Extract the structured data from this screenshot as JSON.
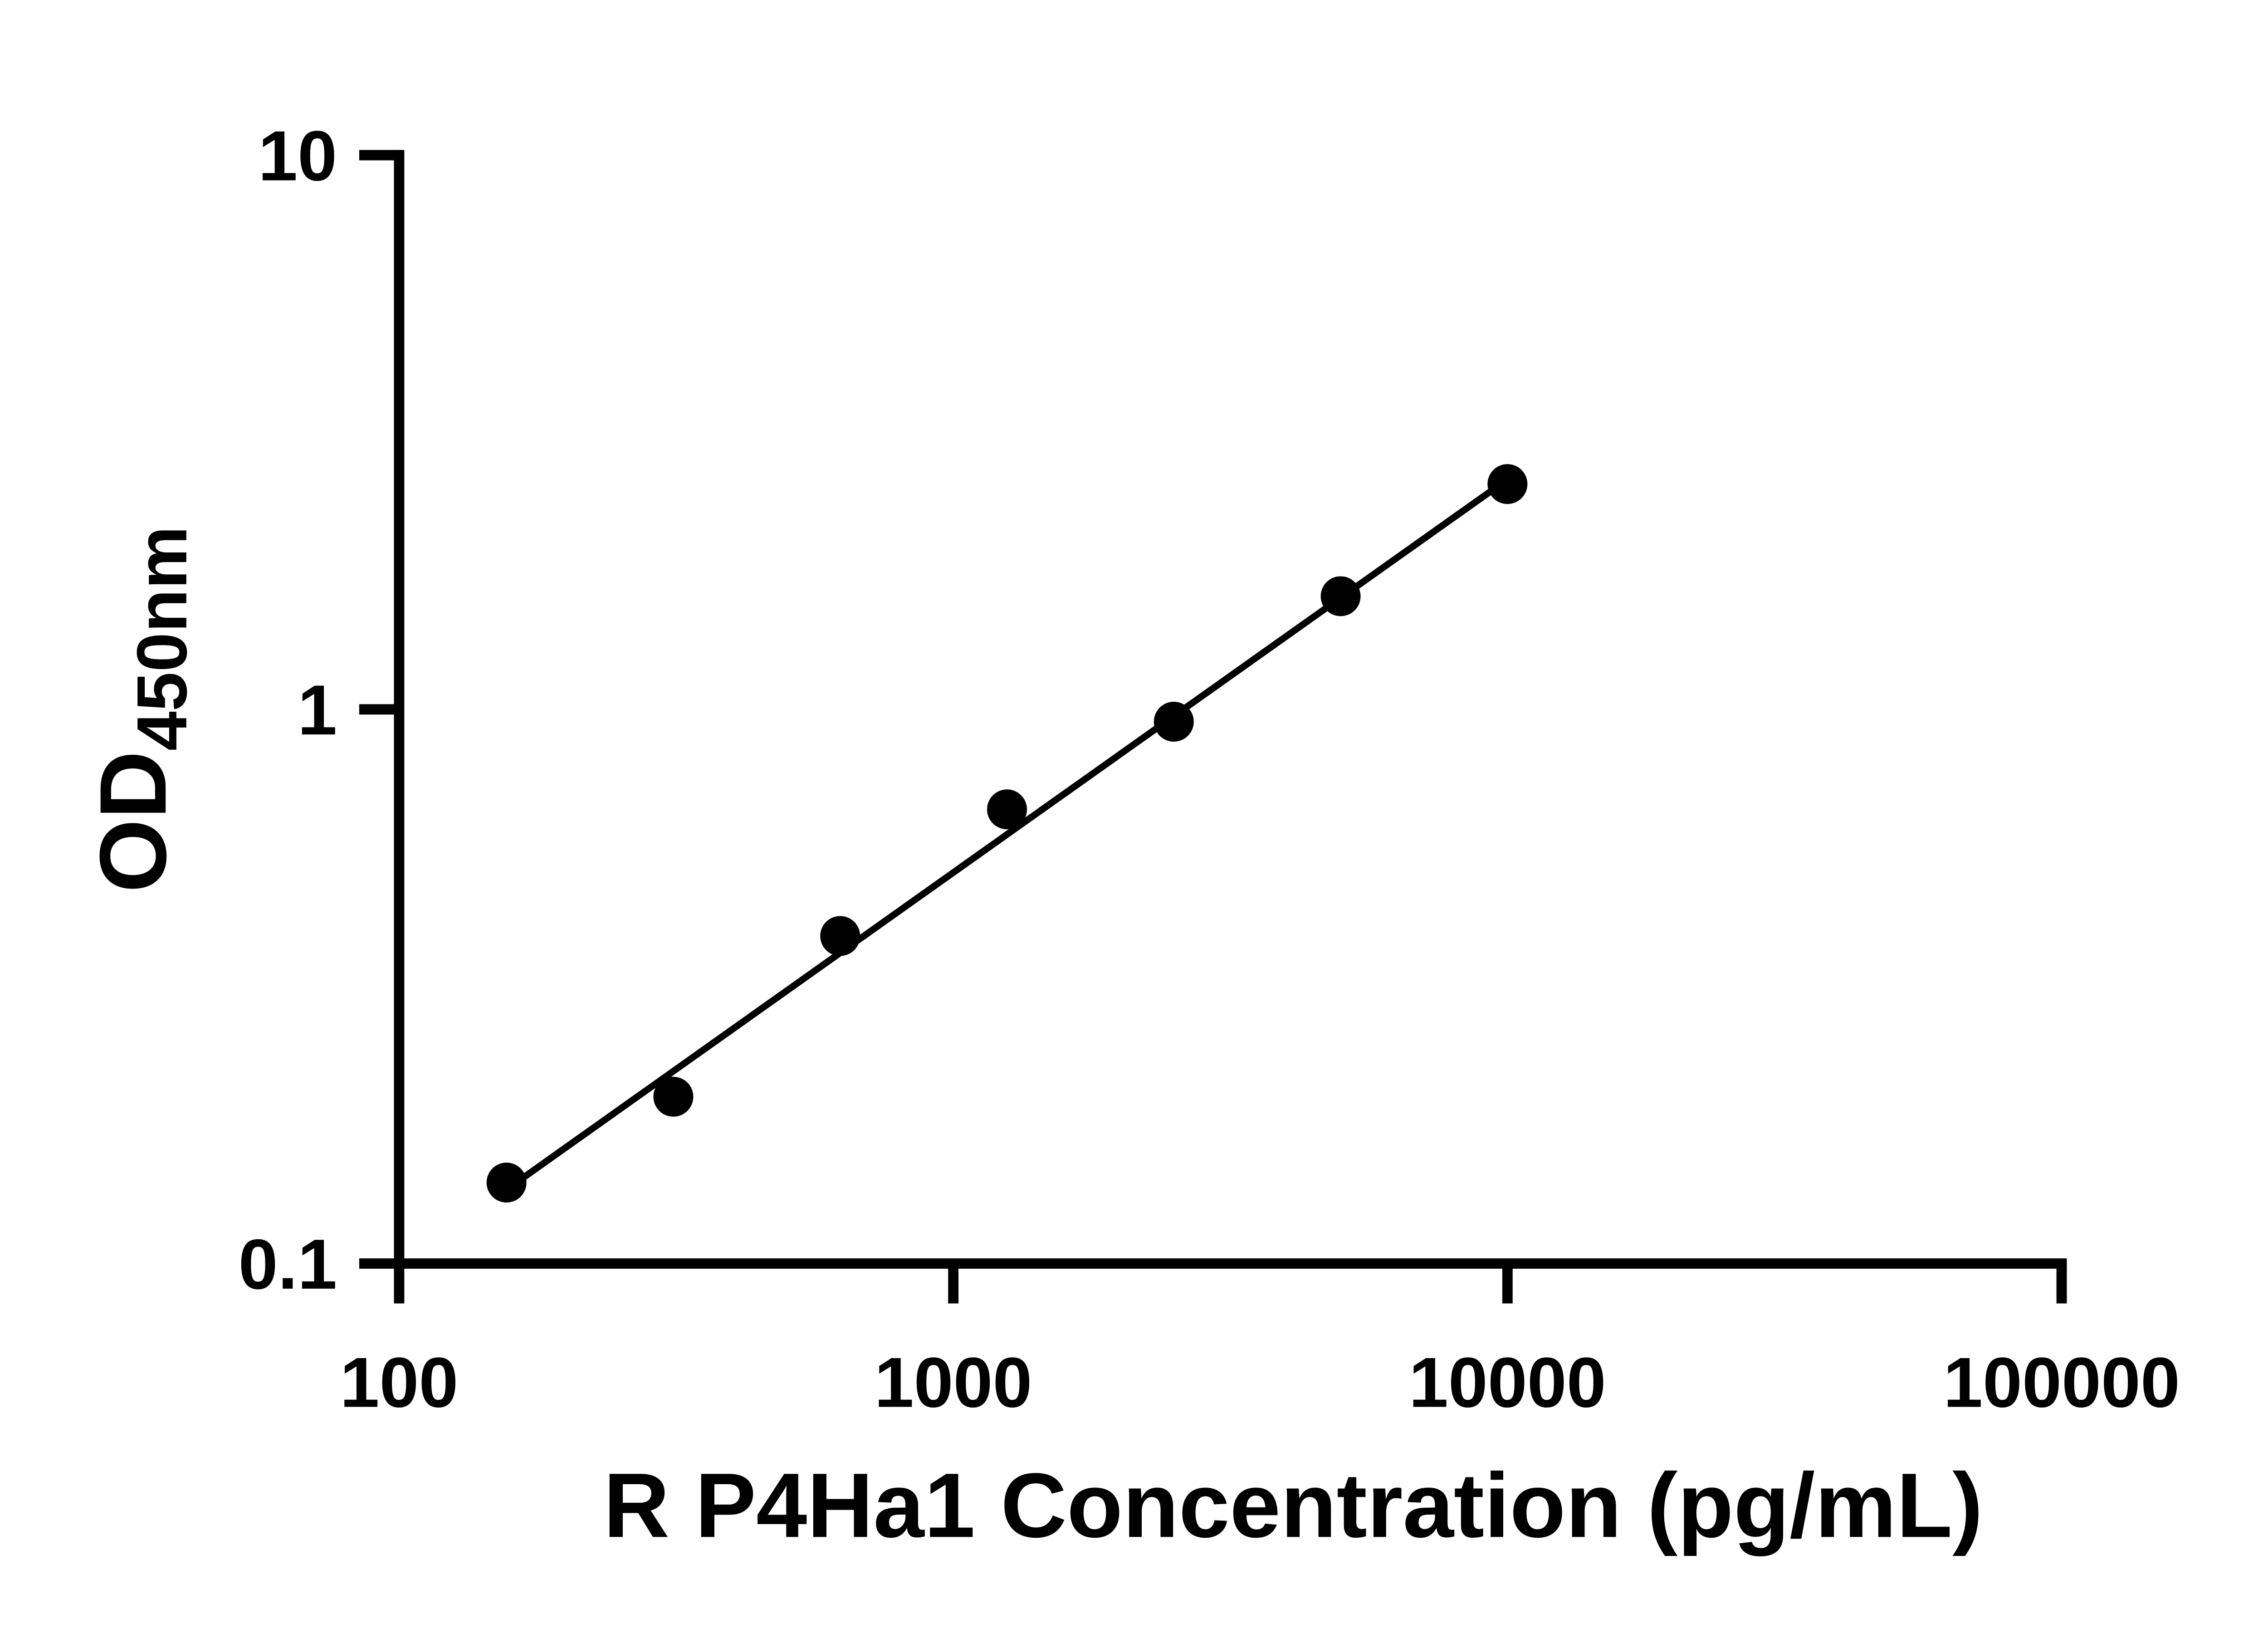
{
  "chart_data": {
    "type": "scatter",
    "title": "",
    "xlabel": "R P4Ha1 Concentration (pg/mL)",
    "ylabel_main": "OD",
    "ylabel_sub": "450nm",
    "x_scale": "log",
    "y_scale": "log",
    "xlim": [
      100,
      100000
    ],
    "ylim": [
      0.1,
      10
    ],
    "grid": "off",
    "legend": "none",
    "background_color": "#ffffff",
    "axis_color": "#000000",
    "marker_color": "#000000",
    "line_color": "#000000",
    "x_ticks": [
      {
        "value": 100,
        "label": "100"
      },
      {
        "value": 1000,
        "label": "1000"
      },
      {
        "value": 10000,
        "label": "10000"
      },
      {
        "value": 100000,
        "label": "100000"
      }
    ],
    "y_ticks": [
      {
        "value": 0.1,
        "label": "0.1"
      },
      {
        "value": 1,
        "label": "1"
      },
      {
        "value": 10,
        "label": "10"
      }
    ],
    "points": [
      {
        "x": 156.25,
        "y": 0.14
      },
      {
        "x": 312.5,
        "y": 0.2
      },
      {
        "x": 625,
        "y": 0.39
      },
      {
        "x": 1250,
        "y": 0.66
      },
      {
        "x": 2500,
        "y": 0.95
      },
      {
        "x": 5000,
        "y": 1.6
      },
      {
        "x": 10000,
        "y": 2.55
      }
    ],
    "trend_line": {
      "x1": 156.25,
      "y1": 0.136,
      "x2": 10000,
      "y2": 2.6
    }
  }
}
